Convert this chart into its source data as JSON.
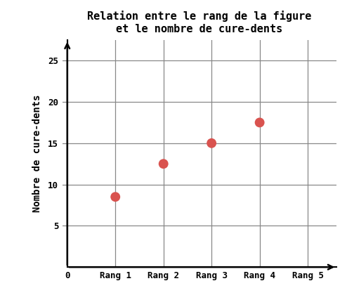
{
  "title_line1": "Relation entre le rang de la figure",
  "title_line2": "et le nombre de cure-dents",
  "ylabel": "Nombre de cure-dents",
  "x_tick_labels": [
    "0",
    "Rang 1",
    "Rang 2",
    "Rang 3",
    "Rang 4",
    "Rang 5"
  ],
  "x_tick_positions": [
    0,
    1,
    2,
    3,
    4,
    5
  ],
  "y_tick_positions": [
    5,
    10,
    15,
    20,
    25
  ],
  "y_tick_labels": [
    "5",
    "10",
    "15",
    "20",
    "25"
  ],
  "xlim": [
    -0.1,
    5.6
  ],
  "ylim": [
    0,
    27.5
  ],
  "data_x": [
    1,
    2,
    3,
    4
  ],
  "data_y": [
    8.5,
    12.5,
    15,
    17.5
  ],
  "dot_color": "#d9534f",
  "dot_size": 100,
  "grid_color": "#888888",
  "background_color": "#ffffff",
  "title_fontsize": 11,
  "label_fontsize": 10,
  "tick_fontsize": 9,
  "arrow_color": "#000000",
  "spine_color": "#000000"
}
